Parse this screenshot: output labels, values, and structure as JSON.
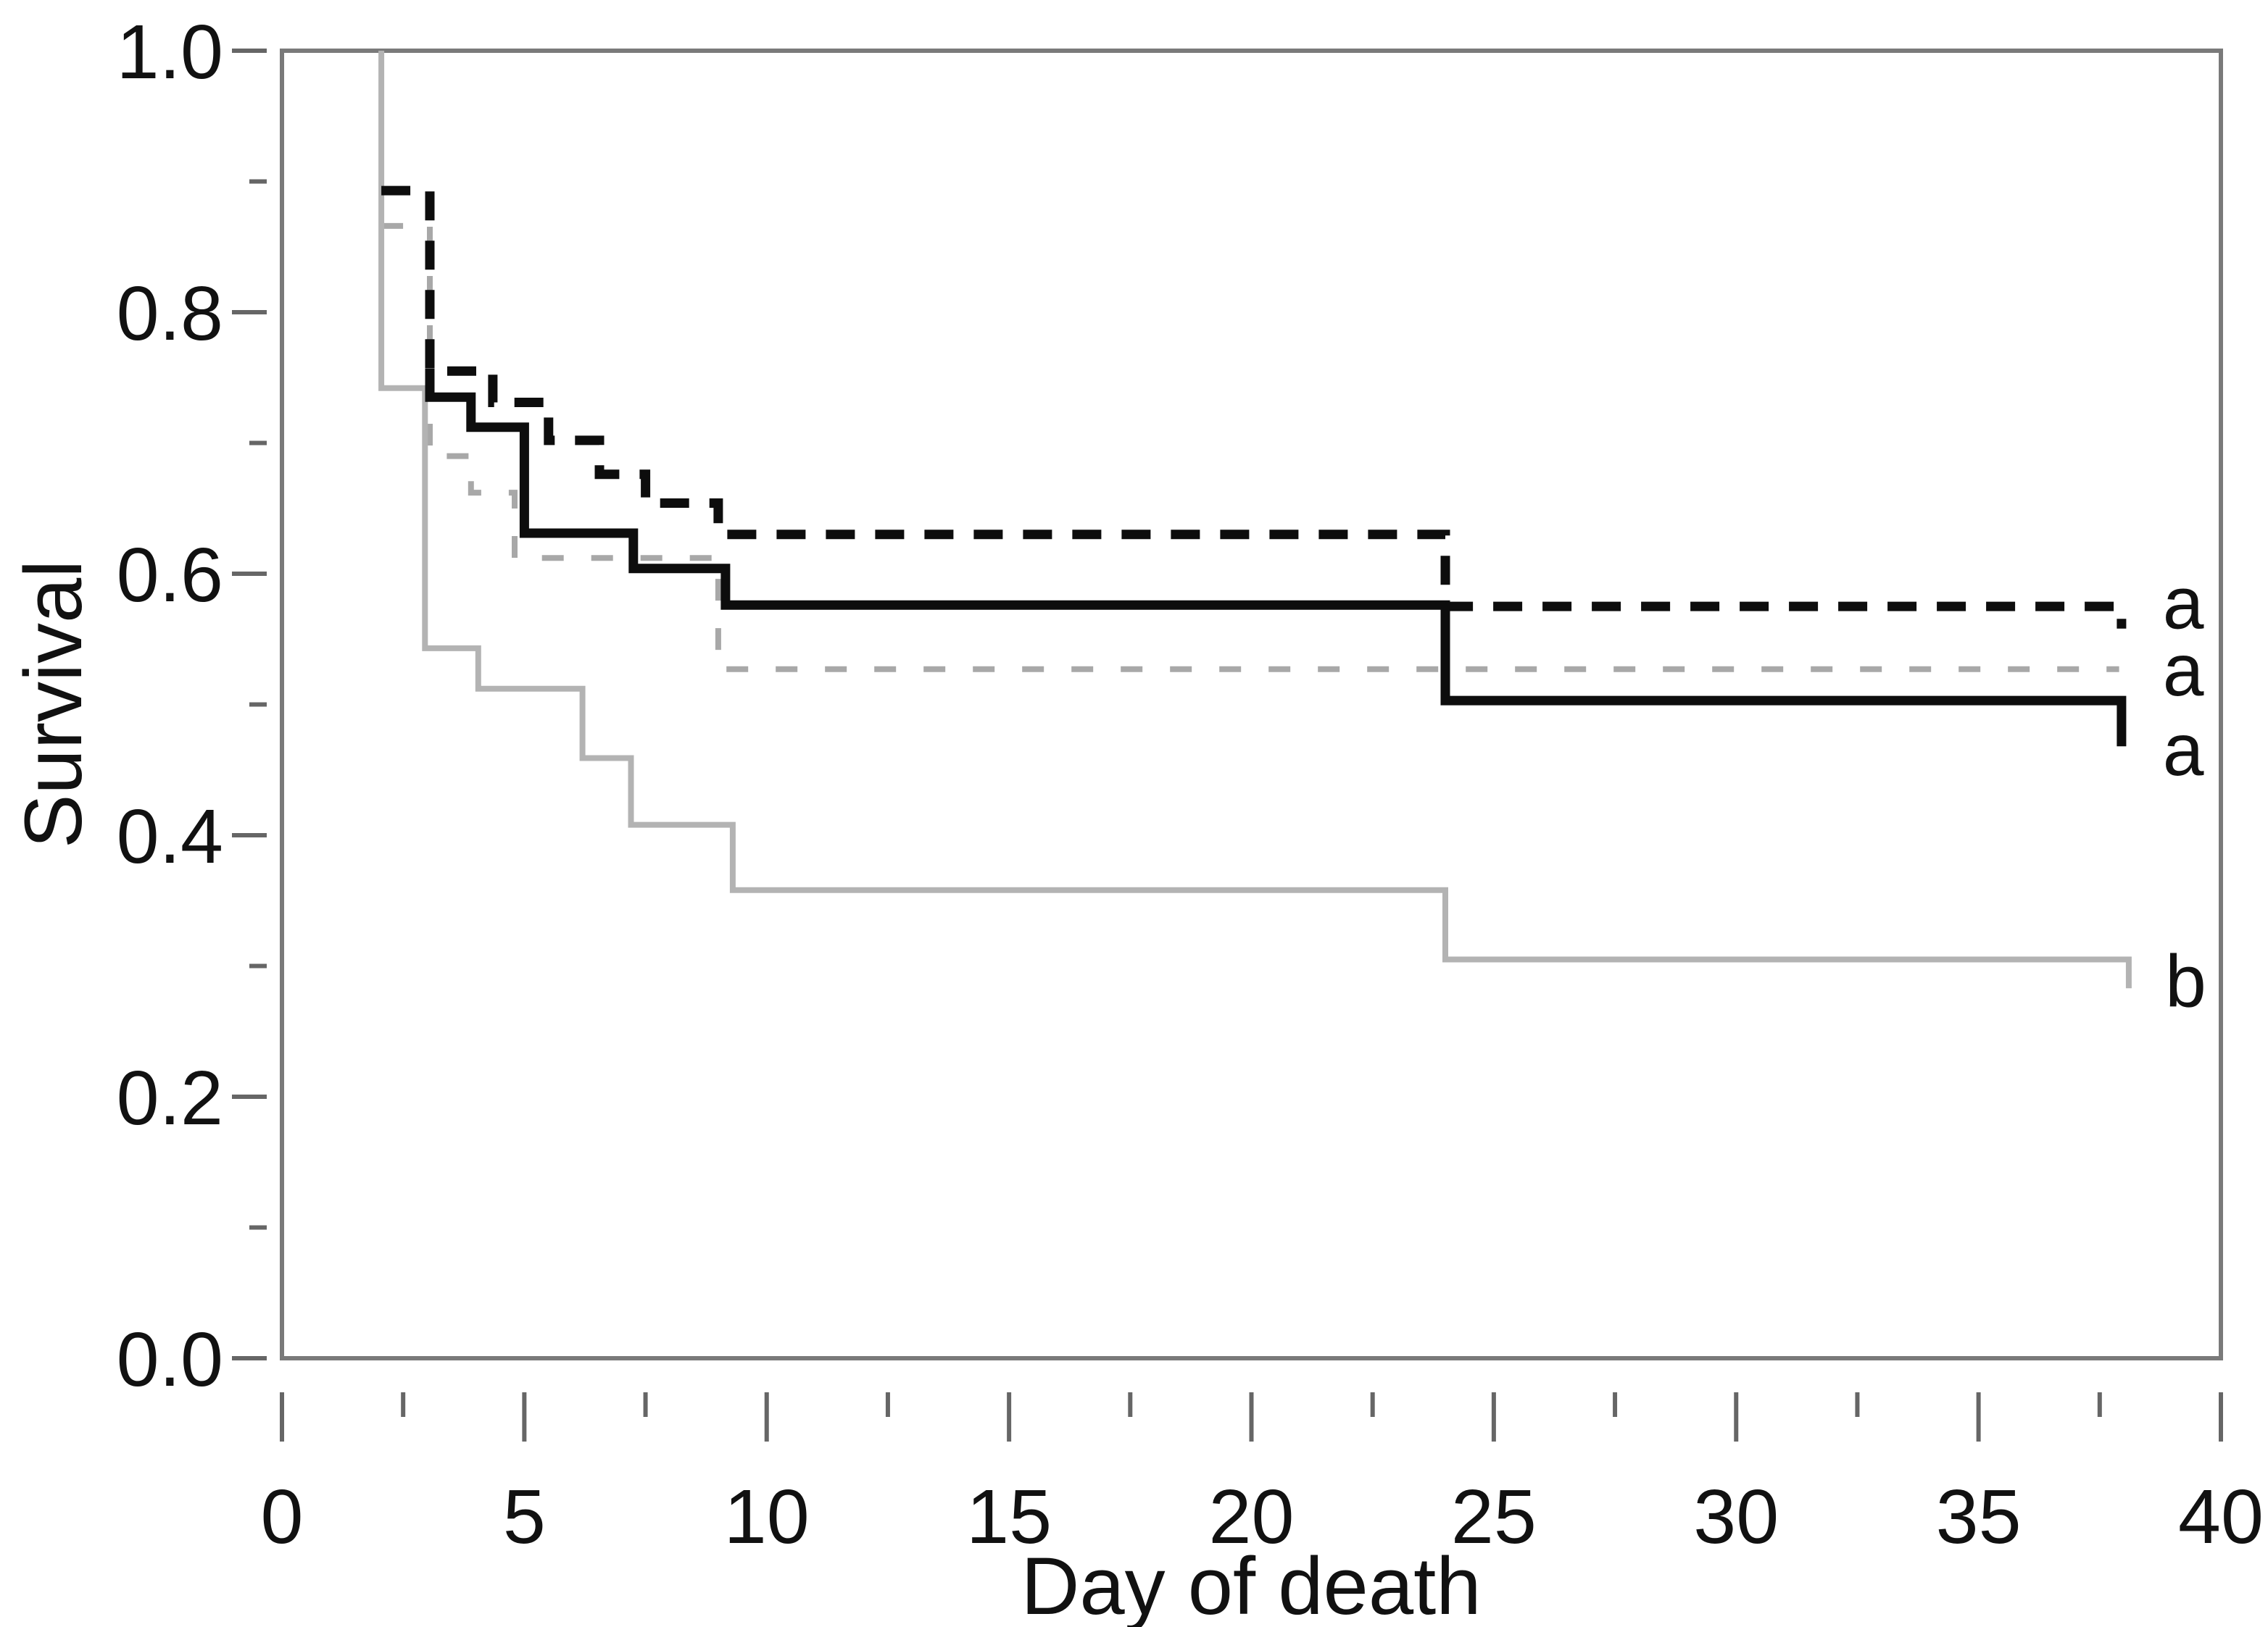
{
  "chart_data": {
    "type": "line",
    "subtype": "kaplan-meier-step-survival",
    "title": "",
    "xlabel": "Day of death",
    "ylabel": "Survival",
    "xlim": [
      0,
      40
    ],
    "ylim": [
      0.0,
      1.0
    ],
    "grid": false,
    "legend_position": "curve-end-labels-right",
    "axis_color": "#7a7a7a",
    "tick_color": "#666666",
    "text_color": "#111111",
    "background_color": "#ffffff",
    "x_ticks": {
      "major": [
        {
          "label": "0",
          "value": 0
        },
        {
          "label": "5",
          "value": 5
        },
        {
          "label": "10",
          "value": 10
        },
        {
          "label": "15",
          "value": 15
        },
        {
          "label": "20",
          "value": 20
        },
        {
          "label": "25",
          "value": 25
        },
        {
          "label": "30",
          "value": 30
        },
        {
          "label": "35",
          "value": 35
        },
        {
          "label": "40",
          "value": 40
        }
      ],
      "minor": [
        2.5,
        7.5,
        12.5,
        17.5,
        22.5,
        27.5,
        32.5,
        37.5
      ]
    },
    "y_ticks": {
      "major": [
        {
          "label": "1.0",
          "value": 1.0
        },
        {
          "label": "0.8",
          "value": 0.8
        },
        {
          "label": "0.6",
          "value": 0.6
        },
        {
          "label": "0.4",
          "value": 0.4
        },
        {
          "label": "0.2",
          "value": 0.2
        },
        {
          "label": "0.0",
          "value": 0.0
        }
      ],
      "minor": [
        0.9,
        0.7,
        0.5,
        0.3,
        0.1
      ]
    },
    "series": [
      {
        "name": "black-dashed-curve",
        "group_label": "a",
        "color": "#0d0d0d",
        "width": 13,
        "dash": "40 28",
        "points": [
          [
            2.05,
            0.893
          ],
          [
            3.05,
            0.893
          ],
          [
            3.05,
            0.755
          ],
          [
            4.35,
            0.755
          ],
          [
            4.35,
            0.731
          ],
          [
            5.5,
            0.731
          ],
          [
            5.5,
            0.702
          ],
          [
            6.55,
            0.702
          ],
          [
            6.55,
            0.676
          ],
          [
            7.5,
            0.676
          ],
          [
            7.5,
            0.654
          ],
          [
            9.0,
            0.654
          ],
          [
            9.0,
            0.63
          ],
          [
            24.0,
            0.63
          ],
          [
            24.0,
            0.575
          ],
          [
            37.95,
            0.575
          ],
          [
            37.95,
            0.558
          ]
        ]
      },
      {
        "name": "gray-dashed-curve",
        "group_label": "a",
        "color": "#a8a8a8",
        "width": 8,
        "dash": "30 38",
        "points": [
          [
            2.05,
            0.866
          ],
          [
            3.05,
            0.866
          ],
          [
            3.05,
            0.69
          ],
          [
            3.9,
            0.69
          ],
          [
            3.9,
            0.662
          ],
          [
            4.8,
            0.662
          ],
          [
            4.8,
            0.612
          ],
          [
            9.0,
            0.612
          ],
          [
            9.0,
            0.527
          ],
          [
            37.9,
            0.527
          ]
        ]
      },
      {
        "name": "black-solid-curve",
        "group_label": "a",
        "color": "#0d0d0d",
        "width": 13,
        "dash": null,
        "points": [
          [
            3.05,
            0.757
          ],
          [
            3.05,
            0.735
          ],
          [
            3.9,
            0.735
          ],
          [
            3.9,
            0.712
          ],
          [
            5.0,
            0.712
          ],
          [
            5.0,
            0.631
          ],
          [
            7.25,
            0.631
          ],
          [
            7.25,
            0.604
          ],
          [
            9.15,
            0.604
          ],
          [
            9.15,
            0.576
          ],
          [
            24.0,
            0.576
          ],
          [
            24.0,
            0.503
          ],
          [
            37.95,
            0.503
          ],
          [
            37.95,
            0.468
          ]
        ]
      },
      {
        "name": "gray-solid-curve",
        "group_label": "b",
        "color": "#b3b3b3",
        "width": 8,
        "dash": null,
        "points": [
          [
            2.05,
            1.0
          ],
          [
            2.05,
            0.742
          ],
          [
            2.95,
            0.742
          ],
          [
            2.95,
            0.543
          ],
          [
            4.05,
            0.543
          ],
          [
            4.05,
            0.512
          ],
          [
            6.2,
            0.512
          ],
          [
            6.2,
            0.459
          ],
          [
            7.2,
            0.459
          ],
          [
            7.2,
            0.408
          ],
          [
            9.3,
            0.408
          ],
          [
            9.3,
            0.358
          ],
          [
            24.0,
            0.358
          ],
          [
            24.0,
            0.305
          ],
          [
            38.1,
            0.305
          ],
          [
            38.1,
            0.283
          ]
        ]
      }
    ],
    "end_labels": [
      {
        "text": "a",
        "x": 38.8,
        "y": 0.578,
        "series": "black-dashed-curve"
      },
      {
        "text": "a",
        "x": 38.8,
        "y": 0.527,
        "series": "gray-dashed-curve"
      },
      {
        "text": "a",
        "x": 38.8,
        "y": 0.466,
        "series": "black-solid-curve"
      },
      {
        "text": "b",
        "x": 38.85,
        "y": 0.289,
        "series": "gray-solid-curve"
      }
    ]
  }
}
